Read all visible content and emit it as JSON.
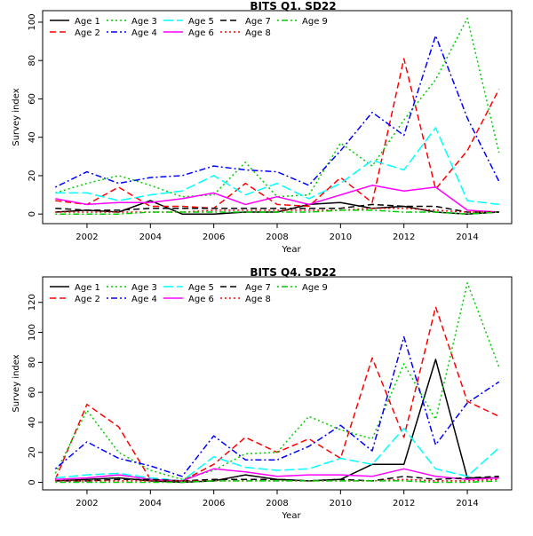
{
  "chart_data": [
    {
      "type": "line",
      "title": "BITS Q1. SD22",
      "xlabel": "Year",
      "ylabel": "Survey index",
      "xlim": [
        2000.6,
        2015.4
      ],
      "ylim": [
        -5,
        106
      ],
      "x_ticks": [
        2002,
        2004,
        2006,
        2008,
        2010,
        2012,
        2014
      ],
      "y_ticks": [
        0,
        20,
        40,
        60,
        80,
        100
      ],
      "legend_position": "top-left",
      "x": [
        2001,
        2002,
        2003,
        2004,
        2005,
        2006,
        2007,
        2008,
        2009,
        2010,
        2011,
        2012,
        2013,
        2014,
        2015
      ],
      "series": [
        {
          "name": "Age 1",
          "color": "#000000",
          "dash": "solid",
          "values": [
            1,
            2,
            1,
            7,
            0,
            0,
            1,
            1,
            5,
            6,
            3,
            4,
            1,
            0,
            1
          ]
        },
        {
          "name": "Age 2",
          "color": "#ff0000",
          "dash": "dashed",
          "values": [
            7,
            5,
            14,
            4,
            4,
            3,
            16,
            5,
            4,
            19,
            6,
            81,
            13,
            33,
            65
          ]
        },
        {
          "name": "Age 3",
          "color": "#00cd00",
          "dash": "dotted",
          "values": [
            11,
            16,
            20,
            15,
            9,
            10,
            27,
            9,
            10,
            37,
            25,
            49,
            70,
            102,
            32
          ]
        },
        {
          "name": "Age 4",
          "color": "#0000ff",
          "dash": "dotdash",
          "values": [
            14,
            22,
            16,
            19,
            20,
            25,
            23,
            22,
            15,
            33,
            53,
            41,
            93,
            50,
            17
          ]
        },
        {
          "name": "Age 5",
          "color": "#00ffff",
          "dash": "longdash",
          "values": [
            11,
            11,
            7,
            10,
            12,
            20,
            10,
            16,
            8,
            16,
            28,
            23,
            45,
            7,
            5
          ]
        },
        {
          "name": "Age 6",
          "color": "#ff00ff",
          "dash": "solid",
          "values": [
            8,
            5,
            6,
            6,
            8,
            11,
            5,
            9,
            5,
            10,
            15,
            12,
            14,
            2,
            1
          ]
        },
        {
          "name": "Age 7",
          "color": "#000000",
          "dash": "dashed",
          "values": [
            3,
            2,
            2,
            3,
            3,
            3,
            3,
            3,
            3,
            3,
            5,
            4,
            4,
            1,
            1
          ]
        },
        {
          "name": "Age 8",
          "color": "#ff0000",
          "dash": "dotted",
          "values": [
            1,
            1,
            1,
            1,
            1,
            2,
            2,
            2,
            2,
            2,
            3,
            3,
            2,
            1,
            1
          ]
        },
        {
          "name": "Age 9",
          "color": "#00cd00",
          "dash": "dotdash",
          "values": [
            0,
            0,
            0,
            1,
            1,
            1,
            1,
            1,
            1,
            2,
            2,
            1,
            1,
            0,
            1
          ]
        }
      ]
    },
    {
      "type": "line",
      "title": "BITS Q4. SD22",
      "xlabel": "Year",
      "ylabel": "Survey index",
      "xlim": [
        2000.6,
        2015.4
      ],
      "ylim": [
        -5,
        137
      ],
      "x_ticks": [
        2002,
        2004,
        2006,
        2008,
        2010,
        2012,
        2014
      ],
      "y_ticks": [
        0,
        20,
        40,
        60,
        80,
        100,
        120
      ],
      "legend_position": "top-left",
      "x": [
        2001,
        2002,
        2003,
        2004,
        2005,
        2006,
        2007,
        2008,
        2009,
        2010,
        2011,
        2012,
        2013,
        2014,
        2015
      ],
      "series": [
        {
          "name": "Age 1",
          "color": "#000000",
          "dash": "solid",
          "values": [
            1,
            2,
            3,
            1,
            0,
            1,
            5,
            2,
            1,
            2,
            12,
            12,
            82,
            3,
            3
          ]
        },
        {
          "name": "Age 2",
          "color": "#ff0000",
          "dash": "dashed",
          "values": [
            2,
            52,
            37,
            2,
            1,
            12,
            30,
            20,
            29,
            16,
            83,
            30,
            117,
            54,
            44
          ]
        },
        {
          "name": "Age 3",
          "color": "#00cd00",
          "dash": "dotted",
          "values": [
            6,
            48,
            20,
            8,
            2,
            8,
            19,
            20,
            44,
            35,
            29,
            79,
            42,
            133,
            77
          ]
        },
        {
          "name": "Age 4",
          "color": "#0000ff",
          "dash": "dotdash",
          "values": [
            9,
            27,
            16,
            11,
            4,
            31,
            15,
            15,
            24,
            38,
            21,
            97,
            25,
            53,
            67
          ]
        },
        {
          "name": "Age 5",
          "color": "#00ffff",
          "dash": "longdash",
          "values": [
            3,
            5,
            6,
            3,
            1,
            17,
            10,
            8,
            9,
            16,
            12,
            36,
            9,
            4,
            23
          ]
        },
        {
          "name": "Age 6",
          "color": "#ff00ff",
          "dash": "solid",
          "values": [
            2,
            3,
            5,
            2,
            1,
            9,
            7,
            4,
            5,
            5,
            4,
            9,
            4,
            2,
            3
          ]
        },
        {
          "name": "Age 7",
          "color": "#000000",
          "dash": "dashed",
          "values": [
            1,
            1,
            2,
            2,
            1,
            2,
            2,
            2,
            1,
            2,
            1,
            4,
            2,
            3,
            4
          ]
        },
        {
          "name": "Age 8",
          "color": "#ff0000",
          "dash": "dotted",
          "values": [
            1,
            1,
            1,
            1,
            1,
            1,
            1,
            1,
            1,
            1,
            1,
            2,
            1,
            1,
            2
          ]
        },
        {
          "name": "Age 9",
          "color": "#00cd00",
          "dash": "dotdash",
          "values": [
            0,
            0,
            0,
            0,
            0,
            1,
            1,
            1,
            1,
            1,
            1,
            1,
            0,
            0,
            1
          ]
        }
      ]
    }
  ]
}
